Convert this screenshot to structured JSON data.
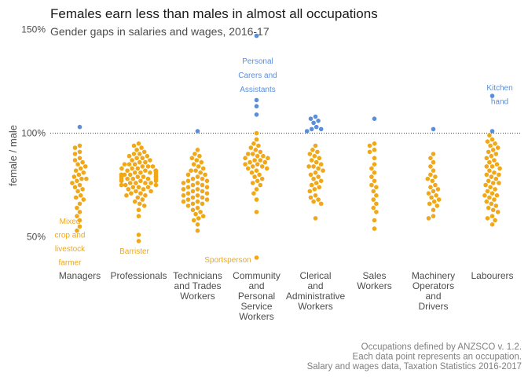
{
  "colors": {
    "below": "#F0A818",
    "above": "#5B8ED9",
    "ref_line": "#333333"
  },
  "chart_data": {
    "type": "scatter",
    "title": "Females earn less than males in almost all occupations",
    "subtitle": "Gender gaps in salaries and wages, 2016-17",
    "ylabel": "female / male",
    "xlabel": "",
    "y_scale": "percent",
    "ylim": [
      35,
      152
    ],
    "yticks": [
      "50%",
      "100%",
      "150%"
    ],
    "reference_line": {
      "value": 100,
      "style": "dotted"
    },
    "grid": false,
    "legend": "none",
    "categories": [
      {
        "name": "Managers",
        "label": "Managers"
      },
      {
        "name": "Professionals",
        "label": "Professionals"
      },
      {
        "name": "Technicians and Trades Workers",
        "label": "Technicians\nand Trades\nWorkers"
      },
      {
        "name": "Community and Personal Service Workers",
        "label": "Community\nand\nPersonal\nService\nWorkers"
      },
      {
        "name": "Clerical and Administrative Workers",
        "label": "Clerical\nand\nAdministrative\nWorkers"
      },
      {
        "name": "Sales Workers",
        "label": "Sales\nWorkers"
      },
      {
        "name": "Machinery Operators and Drivers",
        "label": "Machinery\nOperators\nand\nDrivers"
      },
      {
        "name": "Labourers",
        "label": "Labourers"
      }
    ],
    "series": [
      {
        "category": "Managers",
        "values": [
          103,
          94,
          93,
          91,
          90,
          88,
          87,
          86,
          85,
          84,
          83,
          82,
          81,
          80,
          79,
          78,
          78,
          77,
          76,
          75,
          74,
          73,
          72,
          70,
          69,
          68,
          66,
          64,
          62,
          60,
          58,
          55,
          53
        ]
      },
      {
        "category": "Professionals",
        "values": [
          95,
          94,
          93,
          92,
          91,
          90,
          90,
          89,
          89,
          88,
          88,
          87,
          87,
          86,
          86,
          85,
          85,
          85,
          84,
          84,
          84,
          83,
          83,
          83,
          82,
          82,
          82,
          82,
          81,
          81,
          81,
          81,
          80,
          80,
          80,
          80,
          80,
          79,
          79,
          79,
          79,
          79,
          78,
          78,
          78,
          78,
          78,
          77,
          77,
          77,
          77,
          76,
          76,
          76,
          76,
          75,
          75,
          75,
          74,
          74,
          74,
          73,
          73,
          72,
          72,
          71,
          71,
          70,
          70,
          69,
          68,
          67,
          66,
          65,
          63,
          60,
          51,
          48
        ]
      },
      {
        "category": "Technicians and Trades Workers",
        "values": [
          101,
          92,
          90,
          89,
          88,
          87,
          86,
          85,
          84,
          83,
          82,
          82,
          81,
          80,
          80,
          79,
          78,
          78,
          77,
          77,
          76,
          76,
          75,
          75,
          74,
          74,
          73,
          73,
          72,
          72,
          71,
          71,
          70,
          70,
          69,
          69,
          68,
          68,
          67,
          67,
          66,
          66,
          65,
          64,
          63,
          62,
          61,
          60,
          59,
          58,
          56,
          53
        ]
      },
      {
        "category": "Community and Personal Service Workers",
        "values": [
          147,
          116,
          113,
          109,
          100,
          97,
          95,
          94,
          93,
          92,
          91,
          90,
          90,
          89,
          89,
          88,
          88,
          87,
          87,
          86,
          86,
          85,
          85,
          84,
          84,
          83,
          83,
          82,
          81,
          80,
          79,
          78,
          77,
          76,
          75,
          73,
          71,
          68,
          62,
          40
        ]
      },
      {
        "category": "Clerical and Administrative Workers",
        "values": [
          108,
          107,
          106,
          105,
          103,
          102,
          102,
          101,
          94,
          92,
          91,
          90,
          89,
          88,
          87,
          86,
          85,
          84,
          84,
          83,
          82,
          81,
          80,
          79,
          78,
          77,
          76,
          75,
          74,
          73,
          72,
          70,
          69,
          68,
          67,
          66,
          59
        ]
      },
      {
        "category": "Sales Workers",
        "values": [
          107,
          95,
          94,
          92,
          91,
          88,
          85,
          83,
          81,
          79,
          77,
          75,
          74,
          72,
          70,
          68,
          66,
          64,
          62,
          58,
          54
        ]
      },
      {
        "category": "Machinery Operators and Drivers",
        "values": [
          102,
          90,
          88,
          86,
          84,
          82,
          80,
          79,
          78,
          77,
          75,
          74,
          73,
          72,
          71,
          70,
          69,
          68,
          67,
          66,
          65,
          63,
          60,
          59
        ]
      },
      {
        "category": "Labourers",
        "values": [
          118,
          101,
          99,
          97,
          96,
          95,
          94,
          93,
          92,
          91,
          90,
          89,
          88,
          87,
          86,
          85,
          84,
          84,
          83,
          82,
          81,
          80,
          80,
          79,
          78,
          77,
          76,
          76,
          75,
          74,
          73,
          72,
          71,
          70,
          70,
          69,
          68,
          67,
          66,
          65,
          64,
          63,
          62,
          60,
          59,
          58,
          56
        ]
      }
    ],
    "annotations": [
      {
        "category": "Managers",
        "y": 55,
        "lines": [
          "Mixed",
          "crop and",
          "livestock",
          "farmer"
        ],
        "color": "below"
      },
      {
        "category": "Professionals",
        "y": 48,
        "lines": [
          "Barrister"
        ],
        "color": "below"
      },
      {
        "category": "Community and Personal Service Workers",
        "y": 40,
        "lines": [
          "Sportsperson"
        ],
        "color": "below"
      },
      {
        "category": "Community and Personal Service Workers",
        "y": 147,
        "lines": [
          "Personal",
          "Carers and",
          "Assistants"
        ],
        "color": "above"
      },
      {
        "category": "Labourers",
        "y": 118,
        "lines": [
          "Kitchen",
          "hand"
        ],
        "color": "above"
      }
    ]
  },
  "caption": [
    "Occupations defined by ANZSCO v. 1.2.",
    "Each data point represents an occupation.",
    "Salary and wages data, Taxation Statistics 2016-2017"
  ]
}
